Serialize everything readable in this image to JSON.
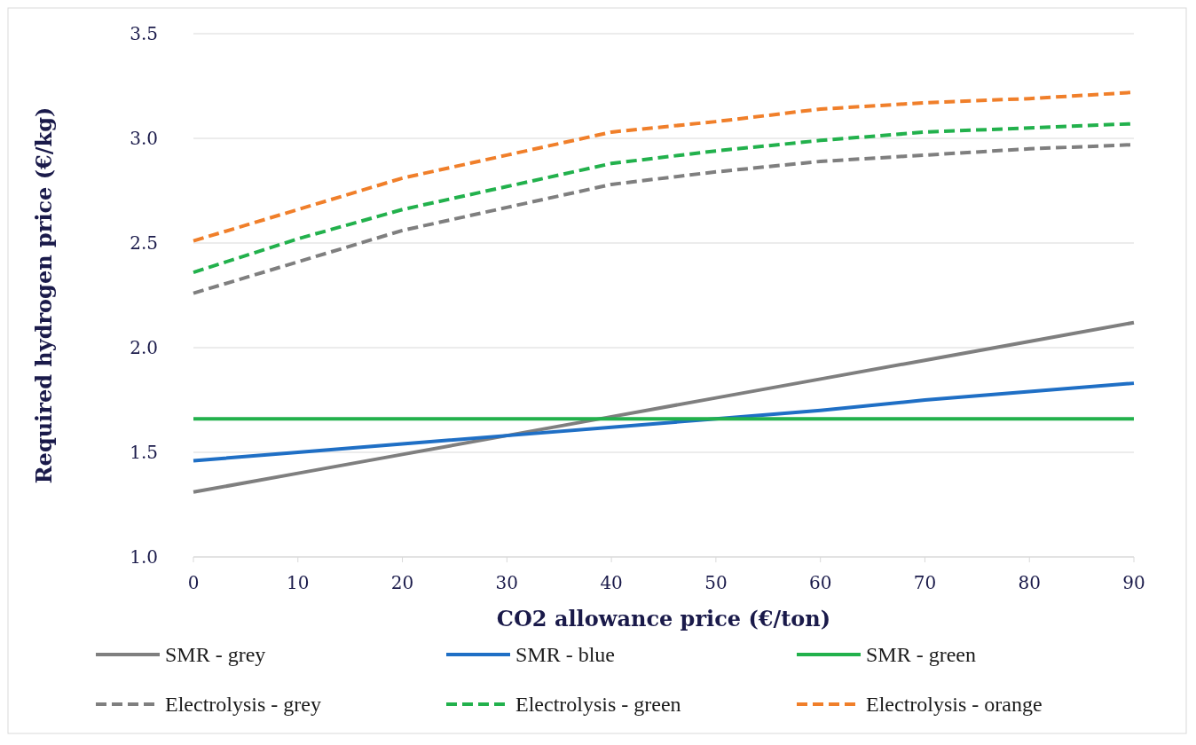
{
  "chart_data": {
    "type": "line",
    "xlabel": "CO2 allowance price (€/ton)",
    "ylabel": "Required hydrogen price (€/kg)",
    "x": [
      0,
      10,
      20,
      30,
      40,
      50,
      60,
      70,
      80,
      90
    ],
    "xlim": [
      0,
      90
    ],
    "xticks": [
      0,
      10,
      20,
      30,
      40,
      50,
      60,
      70,
      80,
      90
    ],
    "ylim": [
      1.0,
      3.5
    ],
    "yticks": [
      {
        "value": 1.0,
        "label": "1.0"
      },
      {
        "value": 1.5,
        "label": "1.5"
      },
      {
        "value": 2.0,
        "label": "2.0"
      },
      {
        "value": 2.5,
        "label": "2.5"
      },
      {
        "value": 3.0,
        "label": "3.0"
      },
      {
        "value": 3.5,
        "label": "3.5"
      }
    ],
    "grid": "y",
    "legend": "bottom",
    "marker": "none",
    "series": [
      {
        "name": "SMR - grey",
        "color": "#7f7f7f",
        "line_style": "solid",
        "values": [
          1.31,
          1.4,
          1.49,
          1.58,
          1.67,
          1.76,
          1.85,
          1.94,
          2.03,
          2.12
        ]
      },
      {
        "name": "SMR - blue",
        "color": "#1f6fc5",
        "line_style": "solid",
        "values": [
          1.46,
          1.5,
          1.54,
          1.58,
          1.62,
          1.66,
          1.7,
          1.75,
          1.79,
          1.83
        ]
      },
      {
        "name": "SMR - green",
        "color": "#22b14c",
        "line_style": "solid",
        "values": [
          1.66,
          1.66,
          1.66,
          1.66,
          1.66,
          1.66,
          1.66,
          1.66,
          1.66,
          1.66
        ]
      },
      {
        "name": "Electrolysis - grey",
        "color": "#7f7f7f",
        "line_style": "dashed",
        "values": [
          2.26,
          2.41,
          2.56,
          2.67,
          2.78,
          2.84,
          2.89,
          2.92,
          2.95,
          2.97
        ]
      },
      {
        "name": "Electrolysis - green",
        "color": "#22b14c",
        "line_style": "dashed",
        "values": [
          2.36,
          2.52,
          2.66,
          2.77,
          2.88,
          2.94,
          2.99,
          3.03,
          3.05,
          3.07
        ]
      },
      {
        "name": "Electrolysis - orange",
        "color": "#f07f2a",
        "line_style": "dashed",
        "values": [
          2.51,
          2.66,
          2.81,
          2.92,
          3.03,
          3.08,
          3.14,
          3.17,
          3.19,
          3.22
        ]
      }
    ]
  }
}
